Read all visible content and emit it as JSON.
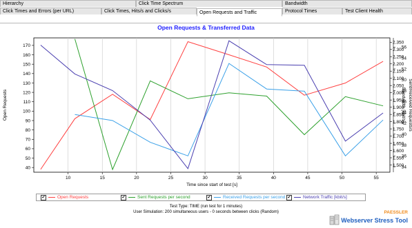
{
  "tabs": {
    "row1": [
      {
        "label": "Hierarchy"
      },
      {
        "label": "Click Time Spectrum"
      },
      {
        "label": "Bandwidth"
      }
    ],
    "row2": [
      {
        "label": "Click Times and Errors (per URL)"
      },
      {
        "label": "Click Times, Hits/s and Clicks/s"
      },
      {
        "label": "Open Requests and Traffic"
      },
      {
        "label": "Protocol Times"
      },
      {
        "label": "Test Client Health"
      }
    ],
    "active": "Open Requests and Traffic"
  },
  "chart_data": {
    "type": "line",
    "title": "Open Requests & Transferred Data",
    "xlabel": "Time since start of test [s]",
    "ylabel_left": "Open Requests",
    "ylabel_right_inner": "Bandwidth [kbit/s]",
    "ylabel_right_outer": "Sent/Received Requests/s",
    "xlim": [
      5,
      57
    ],
    "x_ticks": [
      10,
      15,
      20,
      25,
      30,
      35,
      40,
      45,
      50,
      55
    ],
    "left_axis": {
      "ylim": [
        35,
        178
      ],
      "ticks": [
        40,
        50,
        60,
        70,
        80,
        90,
        100,
        110,
        120,
        130,
        140,
        150,
        160,
        170
      ]
    },
    "bandwidth_axis": {
      "ylim": [
        1.45,
        2.38
      ],
      "ticks": [
        "1.500",
        "1.550",
        "1.600",
        "1.650",
        "1.700",
        "1.750",
        "1.800",
        "1.850",
        "1.900",
        "1.950",
        "2.000",
        "2.050",
        "2.100",
        "2.150",
        "2.200",
        "2.250",
        "2.300",
        "2.350"
      ]
    },
    "requests_axis": {
      "ylim": [
        33,
        57.7
      ],
      "ticks": [
        34,
        36,
        38,
        40,
        42,
        44,
        46,
        48,
        50,
        52,
        54,
        56
      ]
    },
    "grid": "vertical",
    "legend_position": "bottom",
    "series": [
      {
        "name": "Open Requests",
        "color": "#ff4040",
        "axis": "left",
        "x": [
          6,
          11,
          16.5,
          22,
          27.5,
          33.5,
          39,
          44.5,
          50.5,
          56
        ],
        "values": [
          38,
          92,
          118,
          91,
          174,
          160,
          147,
          117,
          130,
          153
        ]
      },
      {
        "name": "Sent Requests per second",
        "color": "#2ca02c",
        "axis": "requests",
        "x": [
          11,
          16.5,
          22,
          27.5,
          33.5,
          39,
          44.5,
          50.5,
          56
        ],
        "values": [
          57.5,
          33.5,
          49.8,
          46.5,
          47.6,
          47.0,
          39.9,
          46.9,
          45.2
        ]
      },
      {
        "name": "Received Requests per second",
        "color": "#3aa0e8",
        "axis": "requests",
        "x": [
          11,
          16.5,
          22,
          27.5,
          33.5,
          39,
          44.5,
          50.5,
          56
        ],
        "values": [
          43.6,
          42.5,
          38.5,
          36.0,
          53.0,
          48.3,
          47.9,
          36.0,
          42.6
        ]
      },
      {
        "name": "Network Traffic [kbit/s]",
        "color": "#4a3fb0",
        "axis": "bandwidth",
        "x": [
          6,
          11,
          16.5,
          22,
          27.5,
          33.5,
          39,
          44.5,
          50.5,
          56
        ],
        "values": [
          2.33,
          2.13,
          2.015,
          1.81,
          1.475,
          2.36,
          2.195,
          2.19,
          1.665,
          1.86
        ]
      }
    ]
  },
  "legend": [
    {
      "name": "Open Requests",
      "checked": "✔",
      "color": "#ff4040"
    },
    {
      "name": "Sent Requests per second",
      "checked": "✔",
      "color": "#2ca02c"
    },
    {
      "name": "Received Requests per second",
      "checked": "✔",
      "color": "#3aa0e8"
    },
    {
      "name": "Network Traffic [kbit/s]",
      "checked": "✔",
      "color": "#4a3fb0"
    }
  ],
  "footnotes": {
    "line1": "Test Type: TIME (run test for 1 minutes)",
    "line2": "User Simulation: 200 simultaneous users - 0 seconds between clicks (Random)"
  },
  "brand": {
    "company": "PAESSLER",
    "product": "Webserver Stress Tool",
    "icon": "servers-icon"
  }
}
